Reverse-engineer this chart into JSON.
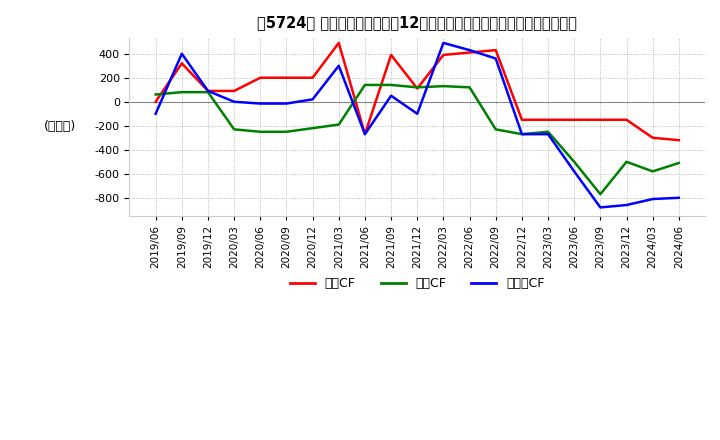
{
  "title_bracket": "　5724、",
  "ylabel": "(百万円)",
  "ylim": [
    -950,
    530
  ],
  "yticks": [
    400,
    200,
    0,
    -200,
    -400,
    -600,
    -800
  ],
  "background_color": "#ffffff",
  "grid_color": "#aaaaaa",
  "legend_labels": [
    "営業CF",
    "投資CF",
    "フリーCF"
  ],
  "legend_colors": [
    "#ff0000",
    "#008000",
    "#0000ff"
  ],
  "dates": [
    "2019/06",
    "2019/09",
    "2019/12",
    "2020/03",
    "2020/06",
    "2020/09",
    "2020/12",
    "2021/03",
    "2021/06",
    "2021/09",
    "2021/12",
    "2022/03",
    "2022/06",
    "2022/09",
    "2022/12",
    "2023/03",
    "2023/06",
    "2023/09",
    "2023/12",
    "2024/03",
    "2024/06"
  ],
  "operating_cf": [
    0,
    320,
    90,
    90,
    200,
    200,
    200,
    490,
    -270,
    390,
    110,
    390,
    410,
    430,
    -150,
    -150,
    -150,
    -150,
    -150,
    -300,
    -320
  ],
  "investing_cf": [
    60,
    80,
    80,
    -230,
    -250,
    -250,
    -220,
    -190,
    140,
    140,
    120,
    130,
    120,
    -230,
    -270,
    -250,
    -500,
    -770,
    -500,
    -580,
    -510
  ],
  "free_cf": [
    -100,
    400,
    90,
    0,
    -15,
    -15,
    20,
    300,
    -270,
    50,
    -100,
    490,
    430,
    360,
    -270,
    -270,
    -580,
    -880,
    -860,
    -810,
    -800
  ]
}
